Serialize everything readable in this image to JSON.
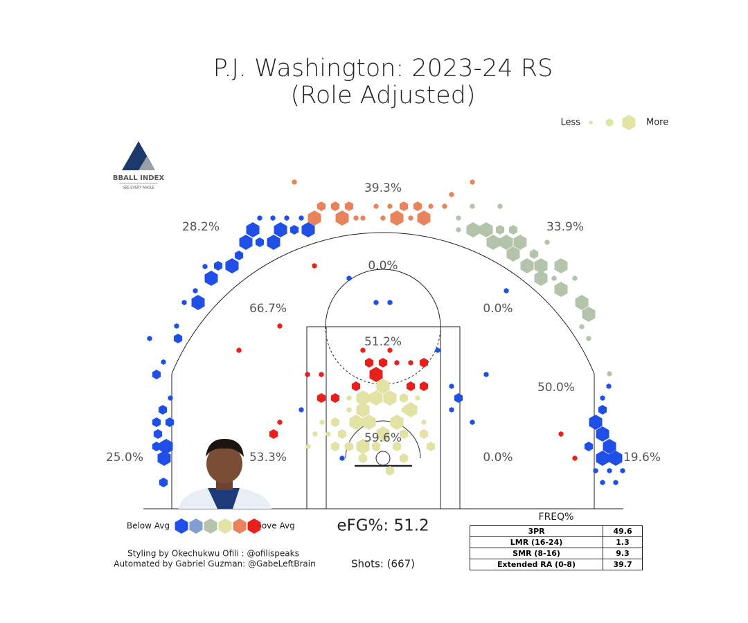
{
  "title": "P.J. Washington: 2023-24 RS",
  "subtitle": "(Role Adjusted)",
  "size_legend": {
    "less": "Less",
    "more": "More"
  },
  "logo": {
    "name": "BBALL INDEX",
    "tagline": "SEE EVERY ANGLE"
  },
  "color_legend": {
    "below": "Below Avg",
    "above": "Above Avg",
    "colors": [
      "#1f4fe6",
      "#7f9fd4",
      "#b3c4aa",
      "#e2e2a4",
      "#e8845c",
      "#e8201c"
    ]
  },
  "zone_labels": [
    "39.3%",
    "28.2%",
    "33.9%",
    "0.0%",
    "66.7%",
    "0.0%",
    "51.2%",
    "50.0%",
    "59.6%",
    "25.0%",
    "53.3%",
    "0.0%",
    "19.6%"
  ],
  "efg": "eFG%: 51.2",
  "shots": "Shots: (667)",
  "credits": [
    "Styling by Okechukwu Ofili : @ofilispeaks",
    "Automated by Gabriel Guzman: @GabeLeftBrain"
  ],
  "freq_table": {
    "title": "FREQ%",
    "rows": [
      [
        "3PR",
        "49.6"
      ],
      [
        "LMR (16-24)",
        "1.3"
      ],
      [
        "SMR (8-16)",
        "9.3"
      ],
      [
        "Extended RA (0-8)",
        "39.7"
      ]
    ]
  },
  "xlim": [
    -347,
    347
  ],
  "ylim": [
    0,
    500
  ],
  "hexes": [
    [
      -188,
      403,
      3,
      0
    ],
    [
      -148,
      403,
      3,
      0
    ],
    [
      -108,
      403,
      3,
      0
    ],
    [
      -198,
      385,
      3,
      0
    ],
    [
      -158,
      385,
      3,
      0
    ],
    [
      -218,
      351,
      3,
      0
    ],
    [
      -248,
      333,
      3,
      0
    ],
    [
      -267,
      298,
      3,
      0
    ],
    [
      -178,
      385,
      2,
      0
    ],
    [
      -128,
      403,
      2,
      0
    ],
    [
      -238,
      351,
      2,
      0
    ],
    [
      -208,
      366,
      2,
      0
    ],
    [
      -313,
      90,
      3,
      0
    ],
    [
      -316,
      73,
      3,
      0
    ],
    [
      -308,
      125,
      2,
      0
    ],
    [
      -327,
      125,
      2,
      0
    ],
    [
      -318,
      143,
      2,
      0
    ],
    [
      -327,
      90,
      2,
      0
    ],
    [
      -325,
      108,
      2,
      0
    ],
    [
      -296,
      246,
      2,
      0
    ],
    [
      -327,
      194,
      2,
      0
    ],
    [
      -317,
      38,
      2,
      0
    ],
    [
      -287,
      298,
      1,
      0
    ],
    [
      -257,
      350,
      1,
      0
    ],
    [
      -337,
      246,
      1,
      0
    ],
    [
      -317,
      212,
      1,
      0
    ],
    [
      -298,
      264,
      1,
      0
    ],
    [
      -139,
      420,
      1,
      0
    ],
    [
      -118,
      420,
      1,
      0
    ],
    [
      -159,
      420,
      1,
      0
    ],
    [
      -178,
      420,
      1,
      0
    ],
    [
      -271,
      315,
      1,
      0
    ],
    [
      -307,
      160,
      1,
      0
    ],
    [
      -99,
      420,
      3,
      4
    ],
    [
      -59,
      420,
      3,
      4
    ],
    [
      20,
      420,
      3,
      4
    ],
    [
      59,
      420,
      3,
      4
    ],
    [
      -89,
      437,
      2,
      4
    ],
    [
      -69,
      437,
      2,
      4
    ],
    [
      -49,
      437,
      2,
      4
    ],
    [
      30,
      437,
      2,
      4
    ],
    [
      50,
      437,
      2,
      4
    ],
    [
      -10,
      437,
      1,
      4
    ],
    [
      -29,
      420,
      1,
      4
    ],
    [
      0,
      420,
      1,
      4
    ],
    [
      40,
      420,
      1,
      4
    ],
    [
      -39,
      420,
      1,
      4
    ],
    [
      -128,
      472,
      1,
      4
    ],
    [
      99,
      454,
      1,
      4
    ],
    [
      129,
      472,
      1,
      4
    ],
    [
      10,
      437,
      1,
      4
    ],
    [
      69,
      437,
      1,
      4
    ],
    [
      89,
      437,
      1,
      4
    ],
    [
      130,
      403,
      3,
      2
    ],
    [
      149,
      403,
      3,
      2
    ],
    [
      159,
      385,
      3,
      2
    ],
    [
      178,
      385,
      3,
      2
    ],
    [
      198,
      385,
      3,
      2
    ],
    [
      188,
      368,
      3,
      2
    ],
    [
      208,
      351,
      3,
      2
    ],
    [
      228,
      351,
      3,
      2
    ],
    [
      257,
      351,
      3,
      2
    ],
    [
      228,
      333,
      3,
      2
    ],
    [
      257,
      317,
      3,
      2
    ],
    [
      287,
      298,
      3,
      2
    ],
    [
      297,
      281,
      3,
      2
    ],
    [
      218,
      368,
      2,
      2
    ],
    [
      169,
      403,
      2,
      2
    ],
    [
      188,
      403,
      2,
      2
    ],
    [
      109,
      420,
      1,
      2
    ],
    [
      129,
      437,
      1,
      2
    ],
    [
      169,
      437,
      1,
      2
    ],
    [
      109,
      403,
      1,
      2
    ],
    [
      237,
      385,
      1,
      2
    ],
    [
      247,
      333,
      1,
      2
    ],
    [
      277,
      333,
      1,
      2
    ],
    [
      287,
      263,
      1,
      2
    ],
    [
      297,
      246,
      1,
      2
    ],
    [
      327,
      195,
      1,
      2
    ],
    [
      307,
      125,
      3,
      0
    ],
    [
      317,
      108,
      3,
      0
    ],
    [
      327,
      90,
      3,
      0
    ],
    [
      317,
      73,
      3,
      0
    ],
    [
      336,
      73,
      3,
      0
    ],
    [
      297,
      90,
      2,
      0
    ],
    [
      317,
      143,
      2,
      0
    ],
    [
      327,
      55,
      1,
      0
    ],
    [
      307,
      55,
      1,
      0
    ],
    [
      346,
      55,
      1,
      0
    ],
    [
      317,
      38,
      1,
      0
    ],
    [
      336,
      38,
      1,
      0
    ],
    [
      326,
      177,
      1,
      0
    ],
    [
      317,
      160,
      1,
      0
    ],
    [
      -29,
      160,
      3,
      3
    ],
    [
      -10,
      160,
      3,
      3
    ],
    [
      10,
      160,
      3,
      3
    ],
    [
      -29,
      143,
      3,
      3
    ],
    [
      0,
      177,
      3,
      3
    ],
    [
      -39,
      125,
      3,
      3
    ],
    [
      -20,
      125,
      3,
      3
    ],
    [
      20,
      125,
      3,
      3
    ],
    [
      40,
      143,
      3,
      3
    ],
    [
      -29,
      90,
      3,
      3
    ],
    [
      0,
      108,
      3,
      3
    ],
    [
      -10,
      90,
      2,
      3
    ],
    [
      -29,
      73,
      2,
      3
    ],
    [
      -49,
      90,
      2,
      3
    ],
    [
      30,
      108,
      2,
      3
    ],
    [
      20,
      90,
      2,
      3
    ],
    [
      30,
      73,
      2,
      3
    ],
    [
      -69,
      125,
      2,
      3
    ],
    [
      -69,
      90,
      2,
      3
    ],
    [
      -59,
      108,
      2,
      3
    ],
    [
      59,
      108,
      2,
      3
    ],
    [
      69,
      90,
      2,
      3
    ],
    [
      10,
      55,
      2,
      3
    ],
    [
      -49,
      160,
      1,
      3
    ],
    [
      30,
      160,
      2,
      3
    ],
    [
      50,
      160,
      1,
      3
    ],
    [
      -98,
      108,
      1,
      3
    ],
    [
      -88,
      125,
      1,
      3
    ],
    [
      -79,
      108,
      1,
      3
    ],
    [
      -108,
      90,
      1,
      3
    ],
    [
      -49,
      143,
      1,
      3
    ],
    [
      30,
      143,
      1,
      3
    ],
    [
      59,
      125,
      1,
      3
    ],
    [
      -10,
      194,
      3,
      5
    ],
    [
      -20,
      211,
      2,
      5
    ],
    [
      0,
      211,
      2,
      5
    ],
    [
      20,
      211,
      1,
      5
    ],
    [
      40,
      211,
      1,
      5
    ],
    [
      -29,
      229,
      1,
      5
    ],
    [
      10,
      229,
      1,
      5
    ],
    [
      -39,
      177,
      2,
      5
    ],
    [
      40,
      177,
      2,
      5
    ],
    [
      59,
      177,
      2,
      5
    ],
    [
      59,
      211,
      2,
      5
    ],
    [
      -69,
      160,
      2,
      5
    ],
    [
      -89,
      160,
      2,
      5
    ],
    [
      -158,
      108,
      2,
      5
    ],
    [
      -149,
      264,
      1,
      5
    ],
    [
      -208,
      229,
      1,
      5
    ],
    [
      -99,
      351,
      1,
      5
    ],
    [
      -149,
      125,
      1,
      5
    ],
    [
      257,
      108,
      1,
      5
    ],
    [
      277,
      73,
      1,
      5
    ],
    [
      -109,
      194,
      1,
      5
    ],
    [
      -89,
      194,
      1,
      5
    ],
    [
      -10,
      298,
      1,
      0
    ],
    [
      10,
      298,
      1,
      0
    ],
    [
      -49,
      333,
      1,
      0
    ],
    [
      109,
      160,
      2,
      0
    ],
    [
      99,
      177,
      1,
      0
    ],
    [
      99,
      143,
      1,
      0
    ],
    [
      129,
      125,
      1,
      0
    ],
    [
      149,
      194,
      1,
      0
    ],
    [
      178,
      315,
      1,
      0
    ],
    [
      79,
      229,
      1,
      0
    ],
    [
      -118,
      143,
      1,
      0
    ],
    [
      -59,
      73,
      1,
      0
    ]
  ]
}
